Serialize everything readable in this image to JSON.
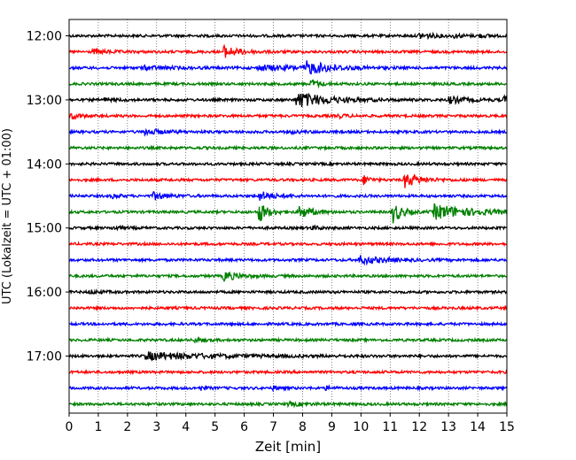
{
  "chart_data": {
    "type": "line",
    "subtype": "helicorder-seismogram",
    "xlabel": "Zeit  [min]",
    "ylabel": "UTC (Lokalzeit = UTC + 01:00)",
    "xlim": [
      0,
      15
    ],
    "x_ticks": [
      0,
      1,
      2,
      3,
      4,
      5,
      6,
      7,
      8,
      9,
      10,
      11,
      12,
      13,
      14,
      15
    ],
    "x_tick_labels": [
      "0",
      "1",
      "2",
      "3",
      "4",
      "5",
      "6",
      "7",
      "8",
      "9",
      "10",
      "11",
      "12",
      "13",
      "14",
      "15"
    ],
    "y_tick_labels": [
      "12:00",
      "13:00",
      "14:00",
      "15:00",
      "16:00",
      "17:00"
    ],
    "y_tick_rows": [
      0,
      4,
      8,
      12,
      16,
      20
    ],
    "grid": "vertical-dotted",
    "trace_colors": [
      "#000000",
      "#ff0000",
      "#0000ff",
      "#008000"
    ],
    "traces": [
      {
        "start": "12:00",
        "color": "#000000",
        "events": [
          {
            "t": 12.0,
            "amp": 0.35,
            "dur": 0.5
          },
          {
            "t": 13.2,
            "amp": 0.2,
            "dur": 0.3
          },
          {
            "t": 14.0,
            "amp": 0.2,
            "dur": 0.3
          }
        ]
      },
      {
        "start": "12:15",
        "color": "#ff0000",
        "events": [
          {
            "t": 5.3,
            "amp": 0.7,
            "dur": 0.5
          },
          {
            "t": 0.8,
            "amp": 0.2,
            "dur": 0.6
          }
        ]
      },
      {
        "start": "12:30",
        "color": "#0000ff",
        "events": [
          {
            "t": 8.1,
            "amp": 0.75,
            "dur": 0.8
          },
          {
            "t": 6.5,
            "amp": 0.3,
            "dur": 1.5
          },
          {
            "t": 2.5,
            "amp": 0.2,
            "dur": 1.0
          }
        ]
      },
      {
        "start": "12:45",
        "color": "#008000",
        "events": [
          {
            "t": 8.3,
            "amp": 0.5,
            "dur": 0.3
          }
        ]
      },
      {
        "start": "13:00",
        "color": "#000000",
        "events": [
          {
            "t": 7.8,
            "amp": 1.0,
            "dur": 1.0
          },
          {
            "t": 13.0,
            "amp": 0.4,
            "dur": 0.6
          },
          {
            "t": 14.9,
            "amp": 0.4,
            "dur": 0.3
          },
          {
            "t": 1.2,
            "amp": 0.2,
            "dur": 0.4
          }
        ]
      },
      {
        "start": "13:15",
        "color": "#ff0000",
        "events": [
          {
            "t": 0.05,
            "amp": 0.4,
            "dur": 0.3
          },
          {
            "t": 9.2,
            "amp": 0.2,
            "dur": 0.3
          }
        ]
      },
      {
        "start": "13:30",
        "color": "#0000ff",
        "events": [
          {
            "t": 2.6,
            "amp": 0.35,
            "dur": 0.6
          },
          {
            "t": 7.5,
            "amp": 0.15,
            "dur": 0.4
          }
        ]
      },
      {
        "start": "13:45",
        "color": "#008000",
        "events": []
      },
      {
        "start": "14:00",
        "color": "#000000",
        "events": []
      },
      {
        "start": "14:15",
        "color": "#ff0000",
        "events": [
          {
            "t": 10.1,
            "amp": 0.6,
            "dur": 0.2
          },
          {
            "t": 11.5,
            "amp": 0.9,
            "dur": 0.5
          }
        ]
      },
      {
        "start": "14:30",
        "color": "#0000ff",
        "events": [
          {
            "t": 2.9,
            "amp": 0.45,
            "dur": 0.4
          },
          {
            "t": 6.5,
            "amp": 0.55,
            "dur": 0.5
          },
          {
            "t": 1.5,
            "amp": 0.25,
            "dur": 0.2
          }
        ]
      },
      {
        "start": "14:45",
        "color": "#008000",
        "events": [
          {
            "t": 6.5,
            "amp": 1.3,
            "dur": 0.3
          },
          {
            "t": 7.9,
            "amp": 0.8,
            "dur": 0.4
          },
          {
            "t": 11.1,
            "amp": 1.3,
            "dur": 0.3
          },
          {
            "t": 12.5,
            "amp": 0.9,
            "dur": 1.2
          }
        ]
      },
      {
        "start": "15:00",
        "color": "#000000",
        "events": [
          {
            "t": 1.5,
            "amp": 0.2,
            "dur": 0.3
          },
          {
            "t": 8.3,
            "amp": 0.2,
            "dur": 0.3
          }
        ]
      },
      {
        "start": "15:15",
        "color": "#ff0000",
        "events": []
      },
      {
        "start": "15:30",
        "color": "#0000ff",
        "events": [
          {
            "t": 9.9,
            "amp": 0.5,
            "dur": 0.8
          }
        ]
      },
      {
        "start": "15:45",
        "color": "#008000",
        "events": [
          {
            "t": 5.3,
            "amp": 0.55,
            "dur": 0.5
          }
        ]
      },
      {
        "start": "16:00",
        "color": "#000000",
        "events": [
          {
            "t": 0.7,
            "amp": 0.2,
            "dur": 0.4
          }
        ]
      },
      {
        "start": "16:15",
        "color": "#ff0000",
        "events": []
      },
      {
        "start": "16:30",
        "color": "#0000ff",
        "events": []
      },
      {
        "start": "16:45",
        "color": "#008000",
        "events": [
          {
            "t": 4.3,
            "amp": 0.2,
            "dur": 0.3
          }
        ]
      },
      {
        "start": "17:00",
        "color": "#000000",
        "events": [
          {
            "t": 2.6,
            "amp": 0.45,
            "dur": 2.2
          }
        ]
      },
      {
        "start": "17:15",
        "color": "#ff0000",
        "events": []
      },
      {
        "start": "17:30",
        "color": "#0000ff",
        "events": [
          {
            "t": 4.5,
            "amp": 0.25,
            "dur": 0.2
          },
          {
            "t": 7.0,
            "amp": 0.25,
            "dur": 0.2
          },
          {
            "t": 8.8,
            "amp": 0.2,
            "dur": 0.2
          }
        ]
      },
      {
        "start": "17:45",
        "color": "#008000",
        "events": [
          {
            "t": 7.5,
            "amp": 0.2,
            "dur": 0.6
          }
        ]
      }
    ]
  }
}
